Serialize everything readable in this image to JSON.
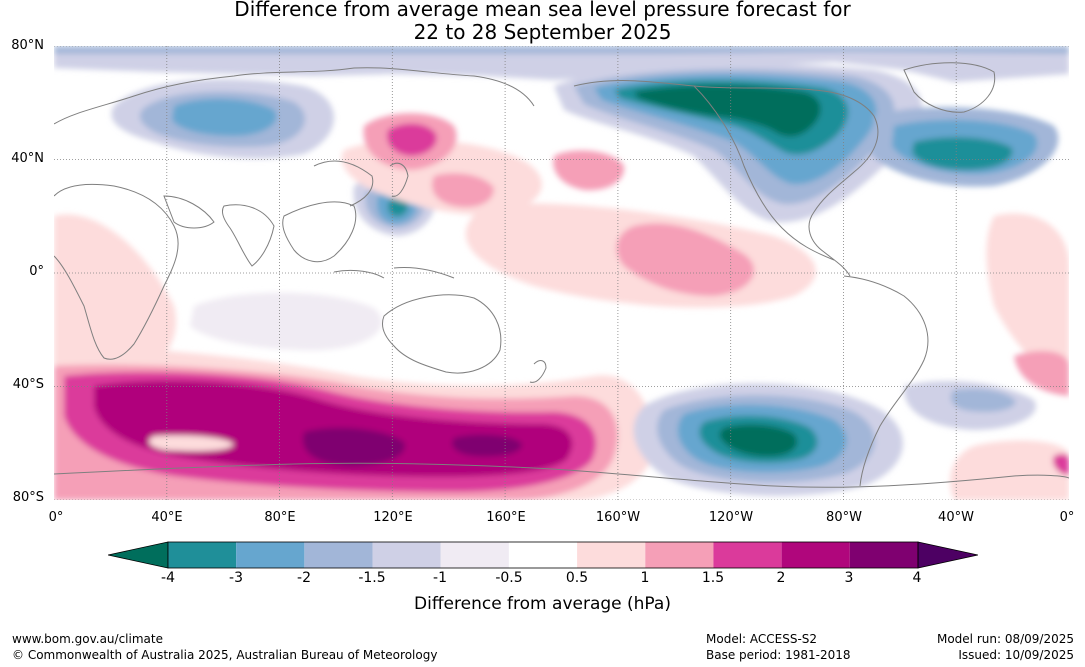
{
  "title_line1": "Difference from average mean sea level pressure forecast for",
  "title_line2": "22 to 28 September 2025",
  "y_ticks": [
    "80°N",
    "40°N",
    "0°",
    "40°S",
    "80°S"
  ],
  "x_ticks": [
    "0°",
    "40°E",
    "80°E",
    "120°E",
    "160°E",
    "160°W",
    "120°W",
    "80°W",
    "40°W",
    "0°"
  ],
  "colorbar": {
    "ticks": [
      "-4",
      "-3",
      "-2",
      "-1.5",
      "-1",
      "-0.5",
      "0.5",
      "1",
      "1.5",
      "2",
      "3",
      "4"
    ],
    "colors": [
      "#006e5c",
      "#1f8f99",
      "#66a6cf",
      "#a2b6d8",
      "#cfd0e6",
      "#f0ebf3",
      "#ffffff",
      "#fddcdc",
      "#f59fb7",
      "#db3a9b",
      "#b0067c",
      "#7f0070",
      "#4d0063"
    ],
    "label": "Difference from average (hPa)"
  },
  "footer": {
    "url": "www.bom.gov.au/climate",
    "copyright": "© Commonwealth of Australia 2025, Australian Bureau of Meteorology",
    "model": "Model: ACCESS-S2",
    "base_period": "Base period: 1981-2018",
    "model_run": "Model run: 08/09/2025",
    "issued": "Issued: 10/09/2025"
  }
}
